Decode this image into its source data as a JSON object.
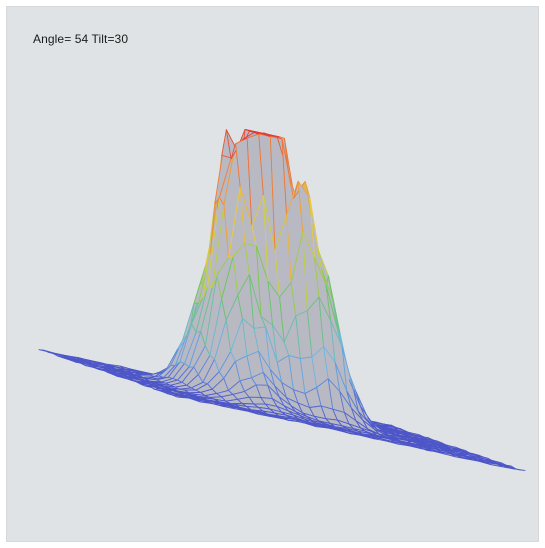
{
  "view": {
    "label": "Angle= 54 Tilt=30",
    "angle_deg": 54,
    "tilt_deg": 30
  },
  "colors": {
    "background": "#e0e3e5",
    "surface_fill": "#b9b9c4",
    "mesh_base": "#4d55c8",
    "colormap": [
      "#4d55c8",
      "#6fb7e6",
      "#6ac65a",
      "#e7d33c",
      "#f08a3a",
      "#e03a3a"
    ]
  },
  "chart_data": {
    "type": "surface",
    "title": "",
    "grid_rows": 30,
    "grid_cols": 30,
    "z_max": 1.0,
    "peaks": [
      {
        "row": 15.5,
        "col": 10.5,
        "height": 0.55,
        "spread_row": 5.5,
        "spread_col": 2.6
      },
      {
        "row": 17.0,
        "col": 13.0,
        "height": 0.85,
        "spread_row": 4.0,
        "spread_col": 2.4
      },
      {
        "row": 18.0,
        "col": 15.5,
        "height": 1.0,
        "spread_row": 3.2,
        "spread_col": 2.0
      },
      {
        "row": 13.5,
        "col": 17.0,
        "height": 0.55,
        "spread_row": 3.0,
        "spread_col": 2.5
      },
      {
        "row": 16.5,
        "col": 19.5,
        "height": 0.3,
        "spread_row": 3.0,
        "spread_col": 2.0
      }
    ]
  }
}
